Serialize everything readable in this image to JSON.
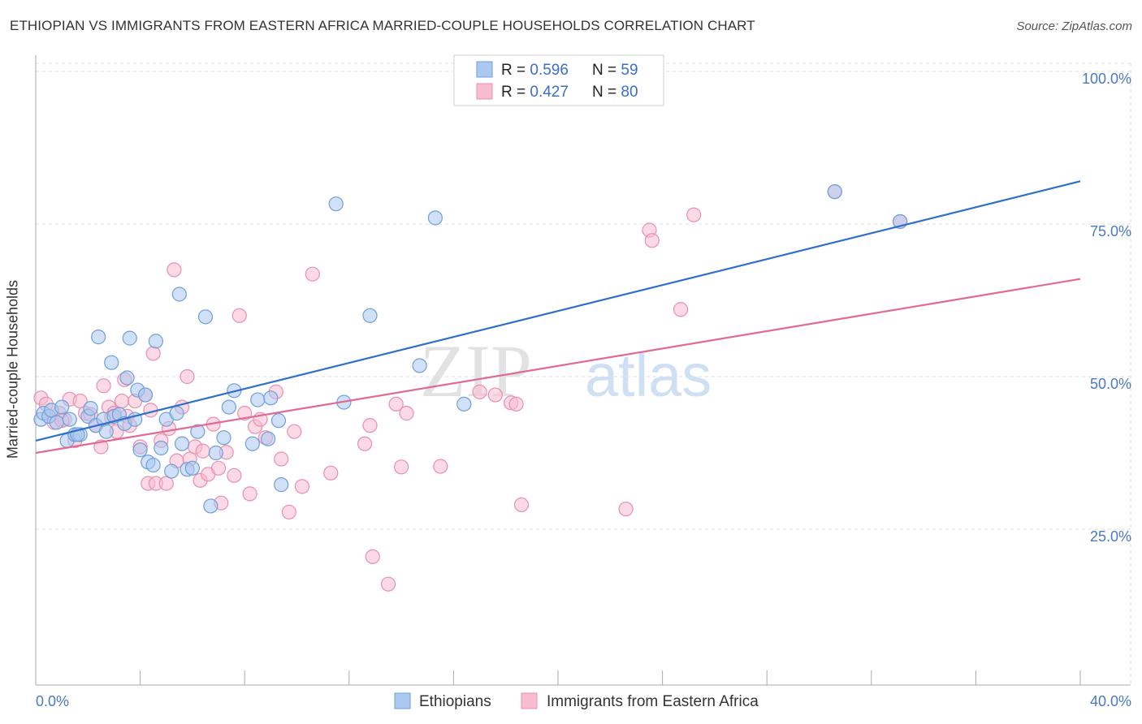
{
  "header": {
    "title": "ETHIOPIAN VS IMMIGRANTS FROM EASTERN AFRICA MARRIED-COUPLE HOUSEHOLDS CORRELATION CHART",
    "source": "Source: ZipAtlas.com"
  },
  "watermark": {
    "zip": "ZIP",
    "atlas": "atlas"
  },
  "chart_data": {
    "type": "scatter",
    "xlabel": "",
    "ylabel": "Married-couple Households",
    "xlim": [
      0,
      40
    ],
    "ylim": [
      2,
      102
    ],
    "x_tick_labels": {
      "min": "0.0%",
      "max": "40.0%"
    },
    "y_ticks": [
      25,
      50,
      75,
      100
    ],
    "y_tick_labels": [
      "25.0%",
      "50.0%",
      "75.0%",
      "100.0%"
    ],
    "x_minor_ticks": [
      0,
      4,
      8,
      12,
      16,
      20,
      24,
      28,
      32,
      36,
      40
    ],
    "grid": true,
    "legend_top": [
      {
        "r_label": "R = ",
        "r_value": "0.596",
        "n_label": "N = ",
        "n_value": "59"
      },
      {
        "r_label": "R = ",
        "r_value": "0.427",
        "n_label": "N = ",
        "n_value": "80"
      }
    ],
    "colors": {
      "ethiopians_fill": "#aac8f0",
      "ethiopians_stroke": "#6f9fd8",
      "ethiopians_line": "#2f6fcc",
      "immigrants_fill": "#f7bcd0",
      "immigrants_stroke": "#e890ae",
      "immigrants_line": "#e06a94",
      "tick_text": "#4a78c8",
      "grid": "#dddddd"
    },
    "series": [
      {
        "name": "Ethiopians",
        "trend": {
          "x0": 0,
          "y0": 39.5,
          "x1": 40,
          "y1": 82
        },
        "points": [
          [
            0.2,
            43
          ],
          [
            0.3,
            44
          ],
          [
            0.5,
            43.5
          ],
          [
            0.6,
            44.5
          ],
          [
            0.8,
            42.5
          ],
          [
            1.0,
            45
          ],
          [
            1.2,
            39.5
          ],
          [
            1.3,
            43
          ],
          [
            1.5,
            40.5
          ],
          [
            1.7,
            40.5
          ],
          [
            2.0,
            43.5
          ],
          [
            2.1,
            44.8
          ],
          [
            2.3,
            42
          ],
          [
            2.4,
            56.5
          ],
          [
            2.6,
            43
          ],
          [
            2.7,
            41
          ],
          [
            2.9,
            52.3
          ],
          [
            3.0,
            43.5
          ],
          [
            3.2,
            43.8
          ],
          [
            3.4,
            42.3
          ],
          [
            3.5,
            49.8
          ],
          [
            3.6,
            56.3
          ],
          [
            3.8,
            43
          ],
          [
            3.9,
            47.8
          ],
          [
            4.0,
            38
          ],
          [
            4.2,
            47
          ],
          [
            4.3,
            36
          ],
          [
            4.5,
            35.5
          ],
          [
            4.6,
            55.8
          ],
          [
            4.8,
            38.3
          ],
          [
            5.0,
            43
          ],
          [
            5.2,
            34.5
          ],
          [
            5.4,
            44
          ],
          [
            5.5,
            63.5
          ],
          [
            5.6,
            39
          ],
          [
            5.8,
            34.8
          ],
          [
            6.0,
            35
          ],
          [
            6.2,
            41
          ],
          [
            6.5,
            59.8
          ],
          [
            6.7,
            28.8
          ],
          [
            6.9,
            37.5
          ],
          [
            7.2,
            40
          ],
          [
            7.4,
            45
          ],
          [
            7.6,
            47.7
          ],
          [
            8.3,
            39
          ],
          [
            8.5,
            46.2
          ],
          [
            8.9,
            39.8
          ],
          [
            9.0,
            46.5
          ],
          [
            9.3,
            42.8
          ],
          [
            9.4,
            32.3
          ],
          [
            11.5,
            78.3
          ],
          [
            11.8,
            45.8
          ],
          [
            12.8,
            60
          ],
          [
            14.7,
            51.8
          ],
          [
            15.3,
            76
          ],
          [
            16.4,
            45.5
          ],
          [
            30.6,
            80.3
          ],
          [
            33.1,
            75.4
          ],
          [
            1.6,
            40.5
          ]
        ]
      },
      {
        "name": "Immigrants from Eastern Africa",
        "trend": {
          "x0": 0,
          "y0": 37.5,
          "x1": 40,
          "y1": 66
        },
        "points": [
          [
            0.2,
            46.5
          ],
          [
            0.4,
            45.5
          ],
          [
            0.5,
            43.5
          ],
          [
            0.7,
            42.5
          ],
          [
            0.9,
            44
          ],
          [
            1.1,
            43
          ],
          [
            1.3,
            46.3
          ],
          [
            1.5,
            39.5
          ],
          [
            1.7,
            46
          ],
          [
            1.9,
            44
          ],
          [
            2.1,
            43.8
          ],
          [
            2.3,
            42
          ],
          [
            2.5,
            38.5
          ],
          [
            2.6,
            48.5
          ],
          [
            2.8,
            45
          ],
          [
            3.0,
            44
          ],
          [
            3.1,
            41
          ],
          [
            3.3,
            46
          ],
          [
            3.4,
            49.5
          ],
          [
            3.5,
            43.5
          ],
          [
            3.6,
            42
          ],
          [
            3.8,
            46
          ],
          [
            4.0,
            38.5
          ],
          [
            4.2,
            47
          ],
          [
            4.3,
            32.5
          ],
          [
            4.5,
            53.8
          ],
          [
            4.6,
            32.5
          ],
          [
            4.8,
            39.5
          ],
          [
            5.0,
            32.5
          ],
          [
            5.1,
            41.5
          ],
          [
            5.3,
            67.5
          ],
          [
            5.4,
            36.2
          ],
          [
            5.6,
            45
          ],
          [
            5.8,
            50
          ],
          [
            5.9,
            36.5
          ],
          [
            6.1,
            38.5
          ],
          [
            6.3,
            33
          ],
          [
            6.4,
            37.8
          ],
          [
            6.6,
            34
          ],
          [
            6.8,
            42.2
          ],
          [
            7.0,
            35
          ],
          [
            7.1,
            29.3
          ],
          [
            7.3,
            37.6
          ],
          [
            7.6,
            33.8
          ],
          [
            7.8,
            60
          ],
          [
            8.0,
            44
          ],
          [
            8.2,
            30.8
          ],
          [
            8.4,
            41.8
          ],
          [
            8.6,
            43
          ],
          [
            8.8,
            40
          ],
          [
            9.2,
            47.5
          ],
          [
            9.4,
            36.5
          ],
          [
            9.7,
            27.8
          ],
          [
            9.9,
            41
          ],
          [
            10.2,
            32
          ],
          [
            10.6,
            66.8
          ],
          [
            11.3,
            34.2
          ],
          [
            12.6,
            39
          ],
          [
            12.8,
            42
          ],
          [
            12.9,
            20.5
          ],
          [
            13.5,
            16
          ],
          [
            13.8,
            45.5
          ],
          [
            14.0,
            35.2
          ],
          [
            14.2,
            44
          ],
          [
            15.5,
            35.3
          ],
          [
            17.0,
            47.5
          ],
          [
            17.6,
            47
          ],
          [
            18.2,
            45.7
          ],
          [
            18.4,
            45.5
          ],
          [
            18.6,
            29
          ],
          [
            22.6,
            28.3
          ],
          [
            23.5,
            74
          ],
          [
            23.6,
            72.3
          ],
          [
            24.7,
            61
          ],
          [
            25.2,
            76.5
          ],
          [
            30.6,
            80.3
          ],
          [
            33.1,
            75.4
          ],
          [
            1.0,
            42.8
          ],
          [
            2.9,
            43.3
          ],
          [
            4.4,
            44.5
          ]
        ]
      }
    ]
  },
  "bottom_legend": [
    {
      "label": "Ethiopians"
    },
    {
      "label": "Immigrants from Eastern Africa"
    }
  ]
}
